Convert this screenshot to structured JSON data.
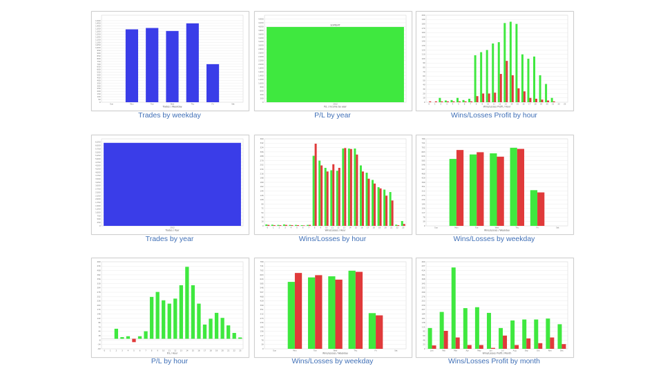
{
  "colors": {
    "blue": "#3a3de8",
    "green": "#3fe83f",
    "red": "#e03a3a",
    "grid": "#e6e6e6",
    "caption": "#3f6fb6"
  },
  "weekdays": [
    "Sun",
    "Mon",
    "Tue",
    "Wed",
    "Thu",
    "Fri",
    "Sat"
  ],
  "months": [
    "Jan",
    "Feb",
    "Mar",
    "Apr",
    "May",
    "Jun",
    "Jul",
    "Aug",
    "Sep",
    "Oct",
    "Nov",
    "Dec"
  ],
  "charts": [
    {
      "caption": "Trades by weekday",
      "chart_data": {
        "type": "bar",
        "xlabel": "Trades / Weekday",
        "categories": [
          "Sun",
          "Mon",
          "Tue",
          "Wed",
          "Thu",
          "Fri",
          "Sat"
        ],
        "series": [
          {
            "color": "blue",
            "values": [
              0,
              1340,
              1365,
              1310,
              1450,
              700,
              0
            ]
          }
        ],
        "ylim": [
          0,
          1600
        ],
        "yticks": [
          0,
          50,
          100,
          150,
          200,
          250,
          300,
          350,
          400,
          450,
          500,
          550,
          600,
          650,
          700,
          750,
          800,
          850,
          900,
          950,
          1000,
          1050,
          1100,
          1150,
          1200,
          1250,
          1300,
          1350,
          1400,
          1450,
          1500
        ]
      }
    },
    {
      "caption": "P/L by year",
      "chart_data": {
        "type": "bar",
        "xlabel": "P/L / Income by year",
        "categories": [
          "2012"
        ],
        "series": [
          {
            "color": "green",
            "values": [
              3978
            ]
          }
        ],
        "data_labels": [
          "3,978.47"
        ],
        "ylim": [
          0,
          4600
        ],
        "yticks": [
          0,
          200,
          400,
          600,
          800,
          1000,
          1200,
          1400,
          1600,
          1800,
          2000,
          2200,
          2400,
          2600,
          2800,
          3000,
          3200,
          3400,
          3600,
          3800,
          4000,
          4200,
          4400
        ]
      }
    },
    {
      "caption": "Wins/Losses Profit by hour",
      "chart_data": {
        "type": "bar",
        "xlabel": "Wins/Losses Profit / Hour",
        "categories": [
          "0",
          "1",
          "2",
          "3",
          "4",
          "5",
          "6",
          "7",
          "8",
          "9",
          "10",
          "11",
          "12",
          "13",
          "14",
          "15",
          "16",
          "17",
          "18",
          "19",
          "20",
          "21",
          "22",
          "23"
        ],
        "series": [
          {
            "color": "green",
            "values": [
              0,
              0,
              10,
              4,
              5,
              10,
              5,
              8,
              108,
              115,
              120,
              135,
              138,
              182,
              185,
              180,
              110,
              100,
              105,
              62,
              42,
              10,
              0,
              0
            ]
          },
          {
            "color": "red",
            "values": [
              2,
              2,
              2,
              2,
              2,
              2,
              2,
              2,
              14,
              20,
              20,
              22,
              65,
              95,
              62,
              32,
              25,
              10,
              8,
              6,
              4,
              2,
              0,
              0
            ]
          }
        ],
        "ylim": [
          0,
          200
        ]
      }
    },
    {
      "caption": "Trades by year",
      "chart_data": {
        "type": "bar",
        "xlabel": "Trades / Year",
        "categories": [
          "2012"
        ],
        "series": [
          {
            "color": "blue",
            "values": [
              6200
            ]
          }
        ],
        "ylim": [
          0,
          6500
        ],
        "yticks": [
          0,
          250,
          500,
          750,
          1000,
          1250,
          1500,
          1750,
          2000,
          2250,
          2500,
          2750,
          3000,
          3250,
          3500,
          3750,
          4000,
          4250,
          4500,
          4750,
          5000,
          5250,
          5500,
          5750,
          6000,
          6250
        ]
      }
    },
    {
      "caption": "Wins/Losses by hour",
      "chart_data": {
        "type": "bar",
        "xlabel": "Wins/Losses / Hour",
        "categories": [
          "0",
          "1",
          "2",
          "3",
          "4",
          "5",
          "6",
          "7",
          "8",
          "9",
          "10",
          "11",
          "12",
          "13",
          "14",
          "15",
          "16",
          "17",
          "18",
          "19",
          "20",
          "21",
          "22",
          "23"
        ],
        "series": [
          {
            "color": "green",
            "values": [
              6,
              5,
              4,
              6,
              4,
              4,
              3,
              4,
              290,
              270,
              240,
              230,
              228,
              320,
              320,
              320,
              250,
              220,
              190,
              160,
              150,
              140,
              5,
              20
            ]
          },
          {
            "color": "red",
            "values": [
              4,
              3,
              3,
              4,
              3,
              3,
              2,
              4,
              340,
              250,
              225,
              255,
              240,
              322,
              318,
              295,
              225,
              195,
              175,
              155,
              125,
              105,
              3,
              8
            ]
          }
        ],
        "ylim": [
          0,
          360
        ]
      }
    },
    {
      "caption": "Wins/Losses by weekday",
      "chart_data": {
        "type": "bar",
        "xlabel": "Wins/Losses / Weekday",
        "categories": [
          "Sun",
          "Mon",
          "Tue",
          "Wed",
          "Thu",
          "Fri",
          "Sat"
        ],
        "series": [
          {
            "color": "green",
            "values": [
              0,
              600,
              640,
              650,
              700,
              320,
              0
            ]
          },
          {
            "color": "red",
            "values": [
              0,
              680,
              660,
              620,
              690,
              300,
              0
            ]
          }
        ],
        "ylim": [
          0,
          780
        ]
      }
    },
    {
      "caption": "P/L by hour",
      "chart_data": {
        "type": "bar",
        "xlabel": "P/L / Hour",
        "categories": [
          "0",
          "1",
          "2",
          "3",
          "4",
          "5",
          "6",
          "7",
          "8",
          "9",
          "10",
          "11",
          "12",
          "13",
          "14",
          "15",
          "16",
          "17",
          "18",
          "19",
          "20",
          "21",
          "22",
          "23"
        ],
        "series": [
          {
            "color": "mixed",
            "values": [
              0,
              0,
              60,
              10,
              15,
              -20,
              15,
              45,
              250,
              280,
              230,
              210,
              240,
              320,
              430,
              320,
              210,
              85,
              120,
              155,
              125,
              80,
              35,
              8
            ]
          }
        ],
        "ylim": [
          -60,
          460
        ]
      }
    },
    {
      "caption": "Wins/Losses by weekday",
      "chart_data": {
        "type": "bar",
        "xlabel": "Wins/Losses / Weekday",
        "categories": [
          "Sun",
          "Mon",
          "Tue",
          "Wed",
          "Thu",
          "Fri",
          "Sat"
        ],
        "series": [
          {
            "color": "green",
            "values": [
              0,
              600,
              640,
              650,
              700,
              320,
              0
            ]
          },
          {
            "color": "red",
            "values": [
              0,
              680,
              660,
              620,
              690,
              300,
              0
            ]
          }
        ],
        "ylim": [
          0,
          780
        ]
      }
    },
    {
      "caption": "Wins/Losses Profit by month",
      "chart_data": {
        "type": "bar",
        "xlabel": "Wins/Losses Profit / Month",
        "categories": [
          "Jan",
          "Feb",
          "Mar",
          "Apr",
          "May",
          "Jun",
          "Jul",
          "Aug",
          "Sep",
          "Oct",
          "Nov",
          "Dec"
        ],
        "series": [
          {
            "color": "green",
            "values": [
              110,
              195,
              430,
              215,
              220,
              190,
              110,
              150,
              155,
              155,
              160,
              130
            ]
          },
          {
            "color": "red",
            "values": [
              18,
              95,
              60,
              20,
              20,
              5,
              70,
              20,
              55,
              30,
              60,
              25
            ]
          }
        ],
        "ylim": [
          0,
          460
        ]
      }
    }
  ]
}
